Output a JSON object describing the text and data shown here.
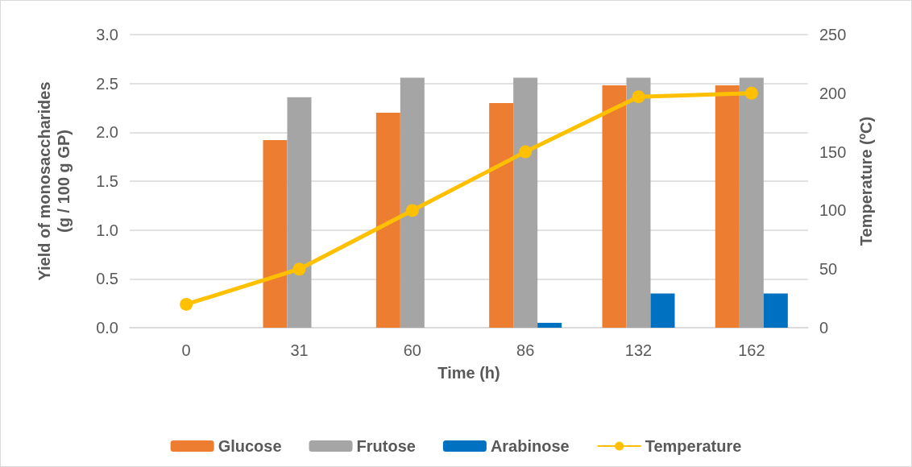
{
  "chart_data": {
    "type": "bar",
    "xlabel": "Time (h)",
    "ylabel": "Yield of monosaccharides\n(g / 100 g GP)",
    "y2label": "Temperature (ºC)",
    "categories": [
      "0",
      "31",
      "60",
      "86",
      "132",
      "162"
    ],
    "series": [
      {
        "name": "Glucose",
        "color": "#ed7d31",
        "values": [
          0,
          1.92,
          2.2,
          2.3,
          2.48,
          2.48
        ]
      },
      {
        "name": "Frutose",
        "color": "#a5a5a5",
        "values": [
          0,
          2.36,
          2.56,
          2.56,
          2.56,
          2.56
        ]
      },
      {
        "name": "Arabinose",
        "color": "#0070c0",
        "values": [
          0,
          0,
          0,
          0.05,
          0.35,
          0.35
        ]
      },
      {
        "name": "Temperature",
        "type": "line",
        "axis": "y2",
        "color": "#ffc000",
        "marker": "circle",
        "values": [
          20,
          50,
          100,
          150,
          197,
          200
        ]
      }
    ],
    "ylim": [
      0,
      3
    ],
    "yticks": [
      {
        "value": 0,
        "label": "0.0"
      },
      {
        "value": 0.5,
        "label": "0.5"
      },
      {
        "value": 1,
        "label": "1.0"
      },
      {
        "value": 1.5,
        "label": "1.5"
      },
      {
        "value": 2,
        "label": "2.0"
      },
      {
        "value": 2.5,
        "label": "2.5"
      },
      {
        "value": 3,
        "label": "3.0"
      }
    ],
    "y2lim": [
      0,
      250
    ],
    "y2ticks": [
      0,
      50,
      100,
      150,
      200,
      250
    ],
    "grid": "y",
    "legend": "bottom"
  }
}
